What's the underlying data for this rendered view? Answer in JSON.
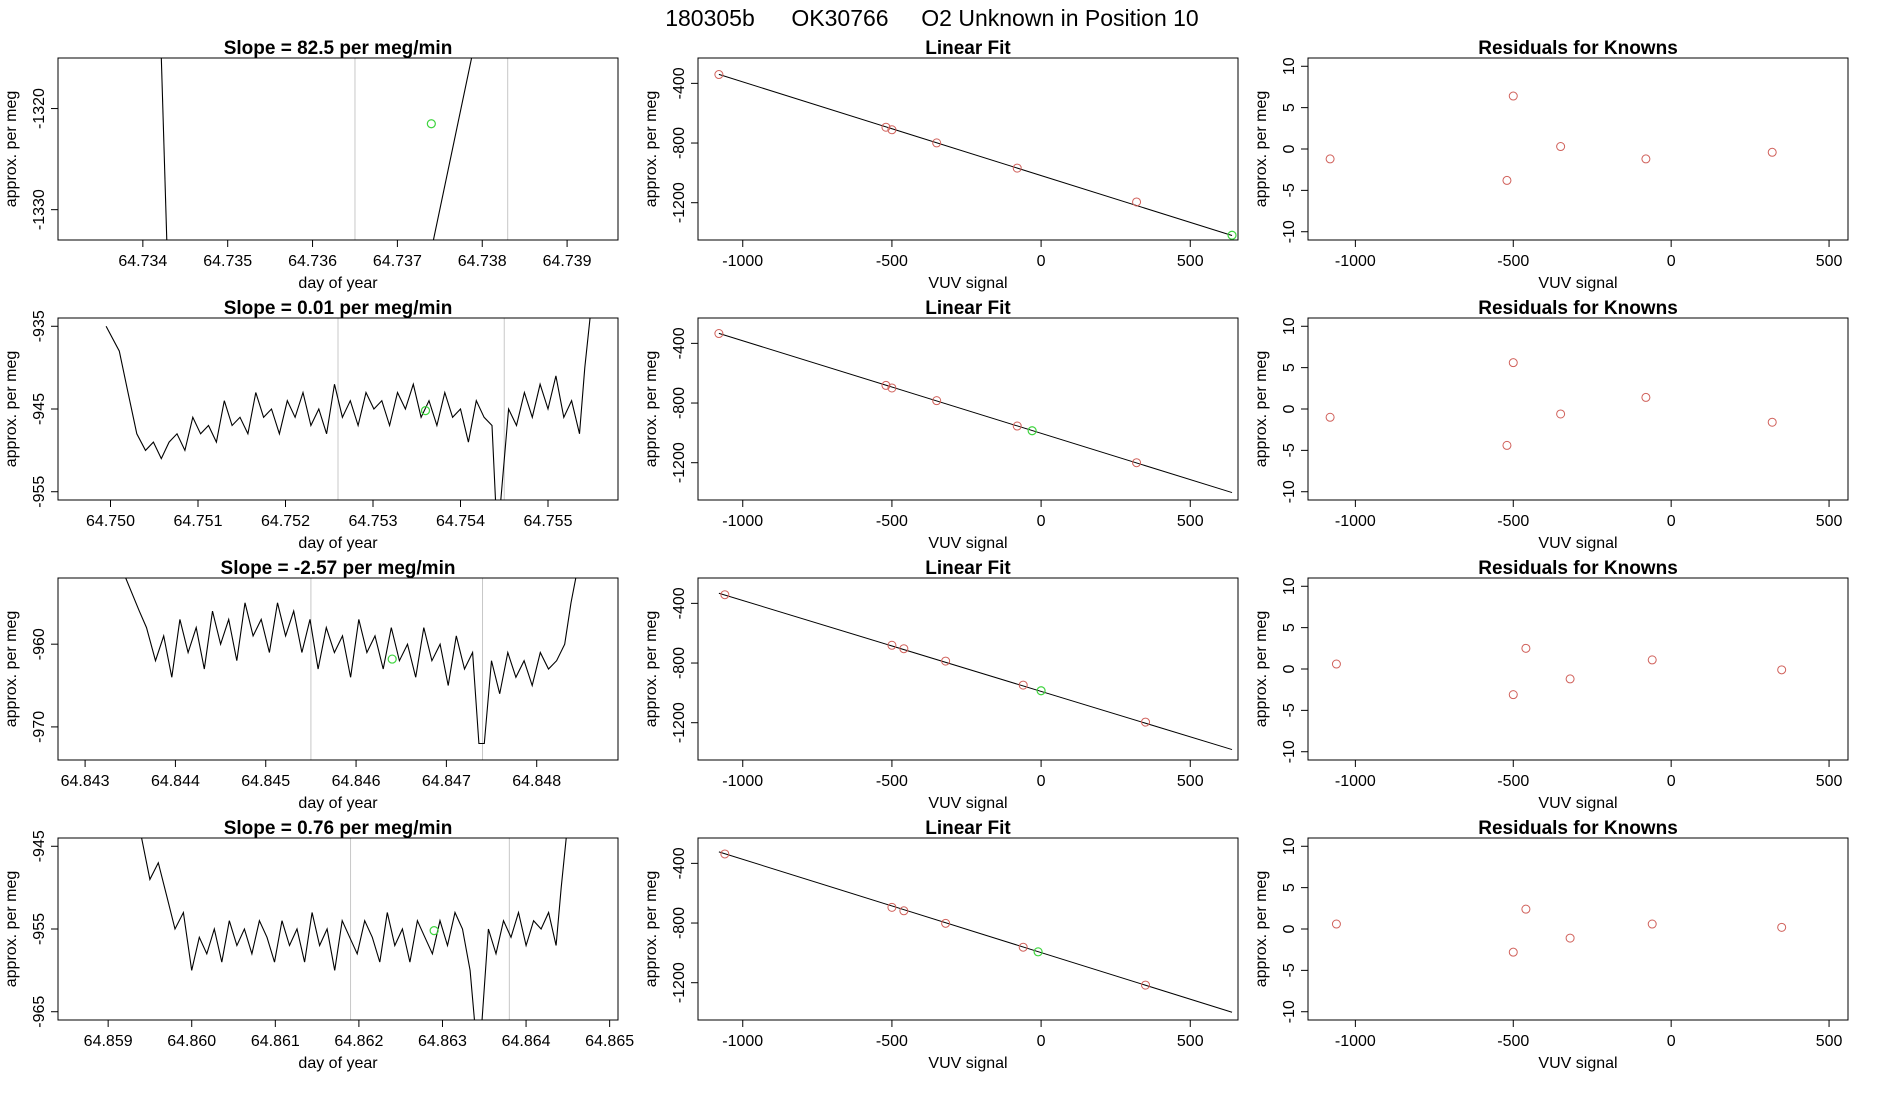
{
  "figure": {
    "run_id": "180305b",
    "sample_id": "OK30766",
    "description": "O2 Unknown in Position  10"
  },
  "colors": {
    "line": "#000000",
    "known_point": "#d0605a",
    "unknown_point": "#3ed43e",
    "vline": "#c8c8c8",
    "frame": "#000000"
  },
  "chart_data": [
    {
      "type": "line",
      "row": 1,
      "column": "time_series",
      "title": "Slope =  82.5  per meg/min",
      "xlabel": "day of year",
      "ylabel": "approx. per meg",
      "xlim": [
        64.733,
        64.7396
      ],
      "ylim": [
        -1333.0,
        -1315.0
      ],
      "xticks": [
        "64.734",
        "64.735",
        "64.736",
        "64.737",
        "64.738",
        "64.739"
      ],
      "yticks": [
        "-1330",
        "-1320"
      ],
      "vlines": [
        64.7365,
        64.7383
      ],
      "series": [
        {
          "x": [
            64.7342,
            64.7343
          ],
          "y": [
            -1310,
            -1338
          ]
        },
        {
          "x": [
            64.7373,
            64.738
          ],
          "y": [
            -1338,
            -1310
          ]
        }
      ],
      "unknown_point": [
        64.7374,
        -1321.5
      ]
    },
    {
      "type": "scatter",
      "row": 1,
      "column": "linear_fit",
      "title": "Linear Fit",
      "xlabel": "VUV signal",
      "ylabel": "approx. per meg",
      "xlim": [
        -1150,
        660
      ],
      "ylim": [
        -1450,
        -230
      ],
      "xticks": [
        "-1000",
        "-500",
        "0",
        "500"
      ],
      "yticks": [
        "-1200",
        "-800",
        "-400"
      ],
      "fit_line": {
        "x": [
          -1080,
          640
        ],
        "y": [
          -340,
          -1420
        ]
      },
      "known_points": {
        "x": [
          -1080,
          -520,
          -500,
          -350,
          -80,
          320
        ],
        "y": [
          -341,
          -694,
          -711,
          -799,
          -968,
          -1195
        ]
      },
      "unknown_point": [
        640,
        -1418
      ]
    },
    {
      "type": "scatter",
      "row": 1,
      "column": "residuals",
      "title": "Residuals for Knowns",
      "xlabel": "VUV signal",
      "ylabel": "approx. per meg",
      "xlim": [
        -1150,
        560
      ],
      "ylim": [
        -11,
        11
      ],
      "xticks": [
        "-1000",
        "-500",
        "0",
        "500"
      ],
      "yticks": [
        "-10",
        "-5",
        "0",
        "5",
        "10"
      ],
      "points": {
        "x": [
          -1080,
          -520,
          -500,
          -350,
          -80,
          320
        ],
        "y": [
          -1.2,
          -3.8,
          6.4,
          0.3,
          -1.2,
          -0.4
        ]
      }
    },
    {
      "type": "line",
      "row": 2,
      "column": "time_series",
      "title": "Slope =  0.01  per meg/min",
      "xlabel": "day of year",
      "ylabel": "approx. per meg",
      "xlim": [
        64.7494,
        64.7558
      ],
      "ylim": [
        -956.0,
        -934.0
      ],
      "xticks": [
        "64.750",
        "64.751",
        "64.752",
        "64.753",
        "64.754",
        "64.755"
      ],
      "yticks": [
        "-955",
        "-945",
        "-935"
      ],
      "vlines": [
        64.7526,
        64.7545
      ],
      "series": [
        {
          "x": [
            64.74995,
            64.7501,
            64.7502,
            64.7503,
            64.7504,
            64.75049,
            64.75058,
            64.75067,
            64.75076,
            64.75085,
            64.75094,
            64.75103,
            64.75112,
            64.75121,
            64.7513,
            64.75139,
            64.75148,
            64.75157,
            64.75166,
            64.75175,
            64.75184,
            64.75193,
            64.75202,
            64.75211,
            64.7522,
            64.75229,
            64.75238,
            64.75247,
            64.75256,
            64.75265,
            64.75274,
            64.75283,
            64.75292,
            64.75301,
            64.7531,
            64.75319,
            64.75328,
            64.75337,
            64.75346,
            64.75355,
            64.75364,
            64.75373,
            64.75382,
            64.75391,
            64.754,
            64.75409,
            64.75418,
            64.75427,
            64.75436,
            64.7544,
            64.75446,
            64.75455,
            64.75464,
            64.75473,
            64.75482,
            64.75491,
            64.755,
            64.75509,
            64.75518,
            64.75527,
            64.75536,
            64.75542,
            64.7555
          ],
          "y": [
            -935,
            -938,
            -943,
            -948,
            -950,
            -949,
            -951,
            -949,
            -948,
            -950,
            -946,
            -948,
            -947,
            -949,
            -944,
            -947,
            -946,
            -948,
            -943,
            -946,
            -945,
            -948,
            -944,
            -946,
            -943,
            -947,
            -945,
            -948,
            -942,
            -946,
            -944,
            -947,
            -943,
            -945,
            -944,
            -947,
            -943,
            -945,
            -942,
            -946,
            -944,
            -947,
            -943,
            -946,
            -945,
            -949,
            -944,
            -946,
            -947,
            -956,
            -956,
            -945,
            -947,
            -943,
            -946,
            -942,
            -945,
            -941,
            -946,
            -944,
            -948,
            -940,
            -932
          ]
        }
      ],
      "unknown_point": [
        64.7536,
        -945.2
      ]
    },
    {
      "type": "scatter",
      "row": 2,
      "column": "linear_fit",
      "title": "Linear Fit",
      "xlabel": "VUV signal",
      "ylabel": "approx. per meg",
      "xlim": [
        -1150,
        660
      ],
      "ylim": [
        -1450,
        -230
      ],
      "xticks": [
        "-1000",
        "-500",
        "0",
        "500"
      ],
      "yticks": [
        "-1200",
        "-800",
        "-400"
      ],
      "fit_line": {
        "x": [
          -1080,
          640
        ],
        "y": [
          -333,
          -1400
        ]
      },
      "known_points": {
        "x": [
          -1080,
          -520,
          -500,
          -350,
          -80,
          320
        ],
        "y": [
          -334,
          -682,
          -699,
          -784,
          -954,
          -1200
        ]
      },
      "unknown_point": [
        -30,
        -986
      ]
    },
    {
      "type": "scatter",
      "row": 2,
      "column": "residuals",
      "title": "Residuals for Knowns",
      "xlabel": "VUV signal",
      "ylabel": "approx. per meg",
      "xlim": [
        -1150,
        560
      ],
      "ylim": [
        -11,
        11
      ],
      "xticks": [
        "-1000",
        "-500",
        "0",
        "500"
      ],
      "yticks": [
        "-10",
        "-5",
        "0",
        "5",
        "10"
      ],
      "points": {
        "x": [
          -1080,
          -520,
          -500,
          -350,
          -80,
          320
        ],
        "y": [
          -1.0,
          -4.4,
          5.6,
          -0.6,
          1.4,
          -1.6
        ]
      }
    },
    {
      "type": "line",
      "row": 3,
      "column": "time_series",
      "title": "Slope =  -2.57  per meg/min",
      "xlabel": "day of year",
      "ylabel": "approx. per meg",
      "xlim": [
        64.8427,
        64.8489
      ],
      "ylim": [
        -974.0,
        -952.0
      ],
      "xticks": [
        "64.843",
        "64.844",
        "64.845",
        "64.846",
        "64.847",
        "64.848"
      ],
      "yticks": [
        "-970",
        "-960"
      ],
      "vlines": [
        64.8455,
        64.8474
      ],
      "series": [
        {
          "x": [
            64.84345,
            64.8436,
            64.84368,
            64.84378,
            64.84387,
            64.84396,
            64.84405,
            64.84414,
            64.84423,
            64.84432,
            64.84441,
            64.8445,
            64.84459,
            64.84468,
            64.84477,
            64.84486,
            64.84495,
            64.84504,
            64.84513,
            64.84522,
            64.84531,
            64.8454,
            64.84549,
            64.84558,
            64.84567,
            64.84576,
            64.84585,
            64.84594,
            64.84603,
            64.84612,
            64.84621,
            64.8463,
            64.84639,
            64.84648,
            64.84657,
            64.84666,
            64.84675,
            64.84684,
            64.84693,
            64.84702,
            64.84711,
            64.8472,
            64.84729,
            64.84736,
            64.84742,
            64.8475,
            64.84759,
            64.84768,
            64.84777,
            64.84786,
            64.84795,
            64.84804,
            64.84813,
            64.84822,
            64.84831,
            64.84838,
            64.84845
          ],
          "y": [
            -952,
            -956,
            -958,
            -962,
            -959,
            -964,
            -957,
            -961,
            -958,
            -963,
            -956,
            -960,
            -957,
            -962,
            -955,
            -959,
            -957,
            -961,
            -955,
            -959,
            -956,
            -961,
            -957,
            -963,
            -958,
            -961,
            -959,
            -964,
            -957,
            -961,
            -959,
            -963,
            -958,
            -962,
            -960,
            -964,
            -958,
            -962,
            -960,
            -965,
            -959,
            -963,
            -961,
            -972,
            -972,
            -962,
            -966,
            -961,
            -964,
            -962,
            -965,
            -961,
            -963,
            -962,
            -960,
            -955,
            -951
          ]
        }
      ],
      "unknown_point": [
        64.8464,
        -961.8
      ]
    },
    {
      "type": "scatter",
      "row": 3,
      "column": "linear_fit",
      "title": "Linear Fit",
      "xlabel": "VUV signal",
      "ylabel": "approx. per meg",
      "xlim": [
        -1150,
        660
      ],
      "ylim": [
        -1450,
        -230
      ],
      "xticks": [
        "-1000",
        "-500",
        "0",
        "500"
      ],
      "yticks": [
        "-1200",
        "-800",
        "-400"
      ],
      "fit_line": {
        "x": [
          -1080,
          640
        ],
        "y": [
          -332,
          -1380
        ]
      },
      "known_points": {
        "x": [
          -1060,
          -500,
          -460,
          -320,
          -60,
          350
        ],
        "y": [
          -342,
          -681,
          -704,
          -787,
          -948,
          -1196
        ]
      },
      "unknown_point": [
        0,
        -986
      ]
    },
    {
      "type": "scatter",
      "row": 3,
      "column": "residuals",
      "title": "Residuals for Knowns",
      "xlabel": "VUV signal",
      "ylabel": "approx. per meg",
      "xlim": [
        -1150,
        560
      ],
      "ylim": [
        -11,
        11
      ],
      "points": {
        "x": [
          -1060,
          -500,
          -460,
          -320,
          -60,
          350
        ],
        "y": [
          0.6,
          -3.1,
          2.5,
          -1.2,
          1.1,
          -0.1
        ]
      },
      "xticks": [
        "-1000",
        "-500",
        "0",
        "500"
      ],
      "yticks": [
        "-10",
        "-5",
        "0",
        "5",
        "10"
      ]
    },
    {
      "type": "line",
      "row": 4,
      "column": "time_series",
      "title": "Slope =  0.76  per meg/min",
      "xlabel": "day of year",
      "ylabel": "approx. per meg",
      "xlim": [
        64.8584,
        64.8651
      ],
      "ylim": [
        -966.0,
        -944.0
      ],
      "xticks": [
        "64.859",
        "64.860",
        "64.861",
        "64.862",
        "64.863",
        "64.864",
        "64.865"
      ],
      "yticks": [
        "-965",
        "-955",
        "-945"
      ],
      "vlines": [
        64.8619,
        64.8638
      ],
      "series": [
        {
          "x": [
            64.8594,
            64.8595,
            64.8596,
            64.8597,
            64.8598,
            64.8599,
            64.86,
            64.86009,
            64.86018,
            64.86027,
            64.86036,
            64.86045,
            64.86054,
            64.86063,
            64.86072,
            64.86081,
            64.8609,
            64.86099,
            64.86108,
            64.86117,
            64.86126,
            64.86135,
            64.86144,
            64.86153,
            64.86162,
            64.86171,
            64.8618,
            64.86189,
            64.86198,
            64.86207,
            64.86216,
            64.86225,
            64.86234,
            64.86243,
            64.86252,
            64.86261,
            64.8627,
            64.86279,
            64.86288,
            64.86297,
            64.86306,
            64.86315,
            64.86324,
            64.86333,
            64.8634,
            64.86346,
            64.86355,
            64.86364,
            64.86373,
            64.86382,
            64.86391,
            64.864,
            64.86409,
            64.86418,
            64.86427,
            64.86436,
            64.86442,
            64.8645
          ],
          "y": [
            -944,
            -949,
            -947,
            -951,
            -955,
            -953,
            -960,
            -956,
            -958,
            -955,
            -959,
            -954,
            -957,
            -955,
            -958,
            -954,
            -956,
            -959,
            -954,
            -957,
            -955,
            -959,
            -953,
            -957,
            -955,
            -960,
            -954,
            -956,
            -958,
            -954,
            -956,
            -959,
            -953,
            -957,
            -955,
            -959,
            -954,
            -956,
            -958,
            -954,
            -957,
            -953,
            -955,
            -960,
            -968,
            -968,
            -955,
            -958,
            -954,
            -956,
            -953,
            -957,
            -954,
            -955,
            -953,
            -957,
            -950,
            -942
          ]
        }
      ],
      "unknown_point": [
        64.8629,
        -955.2
      ]
    },
    {
      "type": "scatter",
      "row": 4,
      "column": "linear_fit",
      "title": "Linear Fit",
      "xlabel": "VUV signal",
      "ylabel": "approx. per meg",
      "xlim": [
        -1150,
        660
      ],
      "ylim": [
        -1450,
        -230
      ],
      "xticks": [
        "-1000",
        "-500",
        "0",
        "500"
      ],
      "yticks": [
        "-1200",
        "-800",
        "-400"
      ],
      "fit_line": {
        "x": [
          -1080,
          640
        ],
        "y": [
          -323,
          -1398
        ]
      },
      "known_points": {
        "x": [
          -1060,
          -500,
          -460,
          -320,
          -60,
          350
        ],
        "y": [
          -337,
          -695,
          -718,
          -802,
          -962,
          -1216
        ]
      },
      "unknown_point": [
        -10,
        -993
      ]
    },
    {
      "type": "scatter",
      "row": 4,
      "column": "residuals",
      "title": "Residuals for Knowns",
      "xlabel": "VUV signal",
      "ylabel": "approx. per meg",
      "xlim": [
        -1150,
        560
      ],
      "ylim": [
        -11,
        11
      ],
      "xticks": [
        "-1000",
        "-500",
        "0",
        "500"
      ],
      "yticks": [
        "-10",
        "-5",
        "0",
        "5",
        "10"
      ],
      "points": {
        "x": [
          -1060,
          -500,
          -460,
          -320,
          -60,
          350
        ],
        "y": [
          0.6,
          -2.8,
          2.4,
          -1.1,
          0.6,
          0.2
        ]
      }
    }
  ]
}
